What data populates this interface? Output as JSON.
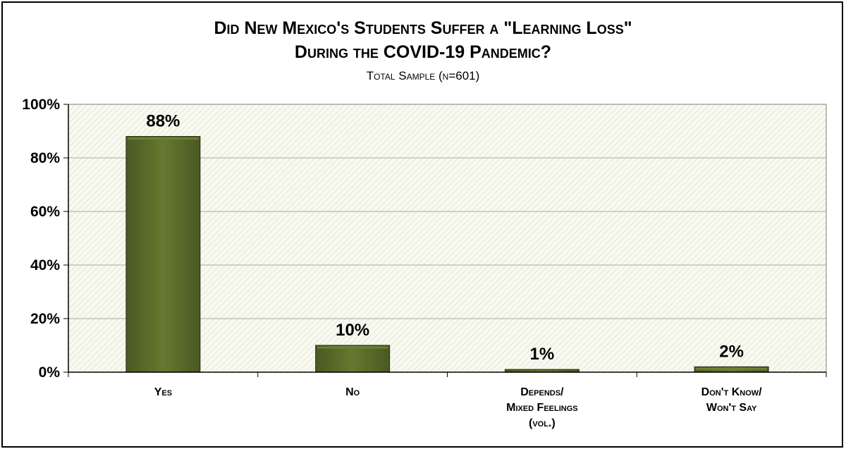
{
  "chart_data": {
    "type": "bar",
    "title": "Did New Mexico's Students Suffer a \"Learning Loss\"",
    "title_line2": "During the COVID-19 Pandemic?",
    "subtitle": "Total Sample (n=601)",
    "categories": [
      [
        "Yes"
      ],
      [
        "No"
      ],
      [
        "Depends/",
        "Mixed Feelings",
        "(vol.)"
      ],
      [
        "Don't Know/",
        "Won't Say"
      ]
    ],
    "values": [
      88,
      10,
      1,
      2
    ],
    "data_labels": [
      "88%",
      "10%",
      "1%",
      "2%"
    ],
    "y_ticks": [
      "0%",
      "20%",
      "40%",
      "60%",
      "80%",
      "100%"
    ],
    "ylim": [
      0,
      100
    ],
    "grid": true,
    "legend": "none",
    "colors": {
      "bar": "#5a6b2a",
      "bar_top": "#6f8236",
      "plot_bg": "#f7f8ee",
      "grid": "#a9a9a9"
    }
  }
}
